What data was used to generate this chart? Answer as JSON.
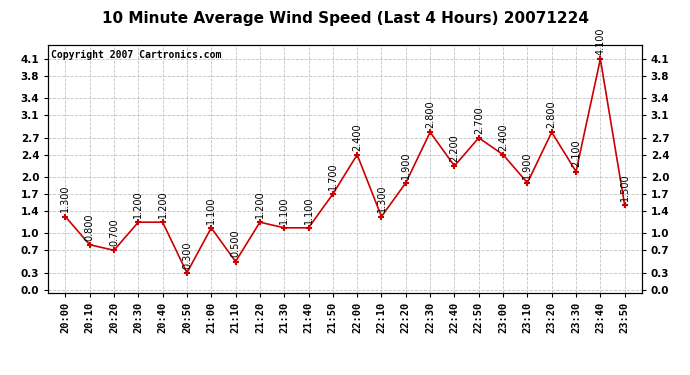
{
  "title": "10 Minute Average Wind Speed (Last 4 Hours) 20071224",
  "copyright": "Copyright 2007 Cartronics.com",
  "x_labels": [
    "20:00",
    "20:10",
    "20:20",
    "20:30",
    "20:40",
    "20:50",
    "21:00",
    "21:10",
    "21:20",
    "21:30",
    "21:40",
    "21:50",
    "22:00",
    "22:10",
    "22:20",
    "22:30",
    "22:40",
    "22:50",
    "23:00",
    "23:10",
    "23:20",
    "23:30",
    "23:40",
    "23:50"
  ],
  "y_values": [
    1.3,
    0.8,
    0.7,
    1.2,
    1.2,
    0.3,
    1.1,
    0.5,
    1.2,
    1.1,
    1.1,
    1.7,
    2.4,
    1.3,
    1.9,
    2.8,
    2.2,
    2.7,
    2.4,
    1.9,
    2.8,
    2.1,
    4.1,
    1.5
  ],
  "y_labels": [
    0.0,
    0.3,
    0.7,
    1.0,
    1.4,
    1.7,
    2.0,
    2.4,
    2.7,
    3.1,
    3.4,
    3.8,
    4.1
  ],
  "ylim": [
    -0.05,
    4.35
  ],
  "line_color": "#cc0000",
  "marker_color": "#cc0000",
  "background_color": "#ffffff",
  "grid_color": "#bbbbbb",
  "title_fontsize": 11,
  "copyright_fontsize": 7,
  "label_fontsize": 7,
  "tick_fontsize": 7.5
}
